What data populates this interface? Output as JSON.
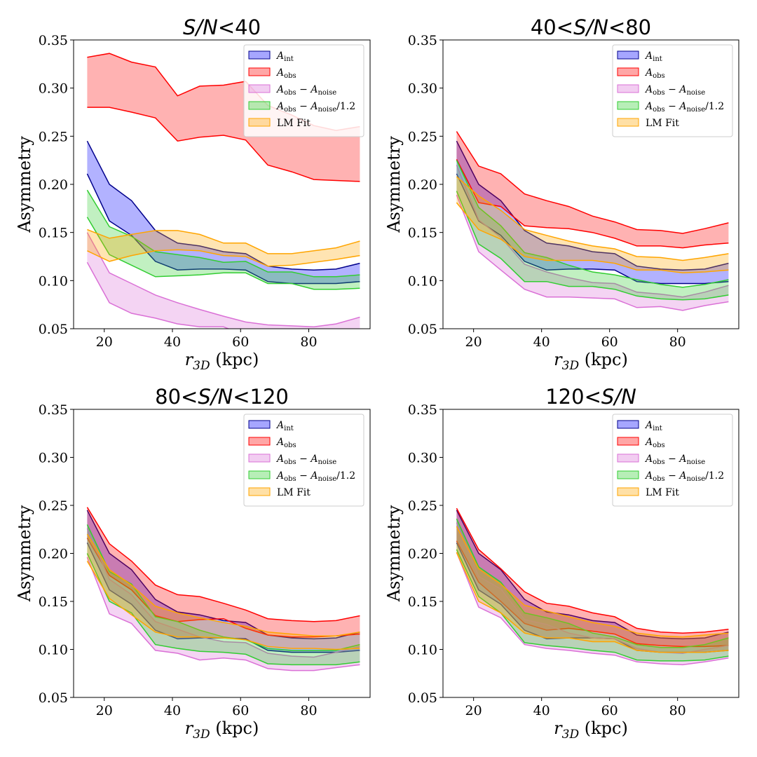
{
  "figure": {
    "ylabel": "Asymmetry",
    "xlabel_main": "r",
    "xlabel_sub": "3D",
    "xlabel_unit": " (kpc)"
  },
  "legend": [
    {
      "label": "A_int",
      "color": "#0000ff",
      "edge": "#00008b"
    },
    {
      "label": "A_obs",
      "color": "#ff0000",
      "edge": "#ff0000"
    },
    {
      "label": "A_obs − A_noise",
      "color": "#da70d6",
      "edge": "#da70d6"
    },
    {
      "label": "A_obs − A_noise/1.2",
      "color": "#32cd32",
      "edge": "#32cd32"
    },
    {
      "label": "LM Fit",
      "color": "#ffa500",
      "edge": "#ffa500"
    }
  ],
  "chart_data": [
    {
      "type": "area",
      "title": "S/N<40",
      "title_parts": [
        "S/N",
        "<40"
      ],
      "xlabel": "r3D (kpc)",
      "ylabel": "Asymmetry",
      "xlim": [
        11,
        98
      ],
      "ylim": [
        0.05,
        0.35
      ],
      "xticks": [
        20,
        40,
        60,
        80
      ],
      "yticks": [
        0.05,
        0.1,
        0.15,
        0.2,
        0.25,
        0.3,
        0.35
      ],
      "x": [
        15,
        21.5,
        28,
        35,
        41.5,
        48,
        55,
        61.5,
        68,
        75,
        81.5,
        88,
        95
      ],
      "series": [
        {
          "name": "A_int",
          "lower": [
            0.211,
            0.162,
            0.147,
            0.12,
            0.111,
            0.112,
            0.112,
            0.111,
            0.099,
            0.097,
            0.097,
            0.097,
            0.099
          ],
          "upper": [
            0.245,
            0.2,
            0.183,
            0.152,
            0.139,
            0.136,
            0.13,
            0.128,
            0.115,
            0.112,
            0.111,
            0.112,
            0.118
          ]
        },
        {
          "name": "A_obs",
          "lower": [
            0.28,
            0.28,
            0.275,
            0.269,
            0.245,
            0.249,
            0.251,
            0.246,
            0.22,
            0.213,
            0.205,
            0.204,
            0.203
          ],
          "upper": [
            0.332,
            0.336,
            0.327,
            0.322,
            0.292,
            0.302,
            0.303,
            0.307,
            0.282,
            0.272,
            0.261,
            0.256,
            0.26
          ]
        },
        {
          "name": "A_obs − A_noise",
          "lower": [
            0.119,
            0.077,
            0.066,
            0.061,
            0.055,
            0.052,
            0.052,
            0.043,
            0.043,
            0.042,
            0.042,
            0.043,
            0.045
          ],
          "upper": [
            0.15,
            0.108,
            0.097,
            0.085,
            0.077,
            0.07,
            0.063,
            0.057,
            0.054,
            0.053,
            0.052,
            0.055,
            0.062
          ]
        },
        {
          "name": "A_obs − A_noise/1.2",
          "lower": [
            0.166,
            0.127,
            0.116,
            0.104,
            0.105,
            0.106,
            0.108,
            0.108,
            0.097,
            0.097,
            0.091,
            0.091,
            0.092
          ],
          "upper": [
            0.194,
            0.156,
            0.146,
            0.13,
            0.127,
            0.124,
            0.119,
            0.12,
            0.109,
            0.109,
            0.104,
            0.104,
            0.106
          ]
        },
        {
          "name": "LM Fit",
          "lower": [
            0.131,
            0.12,
            0.126,
            0.131,
            0.132,
            0.131,
            0.126,
            0.125,
            0.115,
            0.116,
            0.119,
            0.122,
            0.126
          ],
          "upper": [
            0.153,
            0.144,
            0.148,
            0.152,
            0.152,
            0.148,
            0.139,
            0.139,
            0.128,
            0.128,
            0.131,
            0.134,
            0.141
          ]
        }
      ]
    },
    {
      "type": "area",
      "title": "40<S/N<80",
      "title_parts": [
        "40<",
        "S/N",
        "<80"
      ],
      "xlabel": "r3D (kpc)",
      "ylabel": "Asymmetry",
      "xlim": [
        11,
        98
      ],
      "ylim": [
        0.05,
        0.35
      ],
      "xticks": [
        20,
        40,
        60,
        80
      ],
      "yticks": [
        0.05,
        0.1,
        0.15,
        0.2,
        0.25,
        0.3,
        0.35
      ],
      "x": [
        15,
        21.5,
        28,
        35,
        41.5,
        48,
        55,
        61.5,
        68,
        75,
        81.5,
        88,
        95
      ],
      "series": [
        {
          "name": "A_int",
          "lower": [
            0.211,
            0.162,
            0.147,
            0.12,
            0.111,
            0.112,
            0.112,
            0.111,
            0.099,
            0.097,
            0.097,
            0.097,
            0.099
          ],
          "upper": [
            0.245,
            0.2,
            0.183,
            0.152,
            0.139,
            0.136,
            0.13,
            0.128,
            0.115,
            0.112,
            0.111,
            0.112,
            0.118
          ]
        },
        {
          "name": "A_obs",
          "lower": [
            0.226,
            0.181,
            0.177,
            0.157,
            0.155,
            0.154,
            0.15,
            0.144,
            0.136,
            0.136,
            0.134,
            0.137,
            0.139
          ],
          "upper": [
            0.255,
            0.219,
            0.211,
            0.19,
            0.183,
            0.177,
            0.167,
            0.161,
            0.153,
            0.152,
            0.149,
            0.154,
            0.16
          ]
        },
        {
          "name": "A_obs − A_noise",
          "lower": [
            0.189,
            0.13,
            0.111,
            0.091,
            0.083,
            0.083,
            0.082,
            0.081,
            0.072,
            0.073,
            0.069,
            0.074,
            0.078
          ],
          "upper": [
            0.22,
            0.163,
            0.145,
            0.117,
            0.109,
            0.103,
            0.098,
            0.097,
            0.088,
            0.086,
            0.083,
            0.088,
            0.095
          ]
        },
        {
          "name": "A_obs − A_noise/1.2",
          "lower": [
            0.193,
            0.138,
            0.123,
            0.099,
            0.099,
            0.094,
            0.094,
            0.091,
            0.084,
            0.081,
            0.08,
            0.081,
            0.085
          ],
          "upper": [
            0.225,
            0.176,
            0.157,
            0.129,
            0.124,
            0.116,
            0.109,
            0.106,
            0.101,
            0.096,
            0.093,
            0.096,
            0.101
          ]
        },
        {
          "name": "LM Fit",
          "lower": [
            0.181,
            0.153,
            0.143,
            0.125,
            0.121,
            0.121,
            0.121,
            0.118,
            0.111,
            0.111,
            0.108,
            0.109,
            0.111
          ],
          "upper": [
            0.208,
            0.188,
            0.173,
            0.153,
            0.147,
            0.141,
            0.136,
            0.133,
            0.125,
            0.124,
            0.121,
            0.124,
            0.128
          ]
        }
      ]
    },
    {
      "type": "area",
      "title": "80<S/N<120",
      "title_parts": [
        "80<",
        "S/N",
        "<120"
      ],
      "xlabel": "r3D (kpc)",
      "ylabel": "Asymmetry",
      "xlim": [
        11,
        98
      ],
      "ylim": [
        0.05,
        0.35
      ],
      "xticks": [
        20,
        40,
        60,
        80
      ],
      "yticks": [
        0.05,
        0.1,
        0.15,
        0.2,
        0.25,
        0.3,
        0.35
      ],
      "x": [
        15,
        21.5,
        28,
        35,
        41.5,
        48,
        55,
        61.5,
        68,
        75,
        81.5,
        88,
        95
      ],
      "series": [
        {
          "name": "A_int",
          "lower": [
            0.211,
            0.162,
            0.147,
            0.12,
            0.111,
            0.112,
            0.112,
            0.111,
            0.099,
            0.097,
            0.097,
            0.097,
            0.099
          ],
          "upper": [
            0.245,
            0.2,
            0.183,
            0.152,
            0.139,
            0.136,
            0.13,
            0.128,
            0.115,
            0.112,
            0.111,
            0.112,
            0.118
          ]
        },
        {
          "name": "A_obs",
          "lower": [
            0.216,
            0.177,
            0.162,
            0.135,
            0.129,
            0.131,
            0.132,
            0.122,
            0.115,
            0.113,
            0.113,
            0.114,
            0.116
          ],
          "upper": [
            0.248,
            0.21,
            0.192,
            0.167,
            0.157,
            0.155,
            0.148,
            0.141,
            0.132,
            0.13,
            0.129,
            0.13,
            0.135
          ]
        },
        {
          "name": "A_obs − A_noise",
          "lower": [
            0.196,
            0.137,
            0.127,
            0.099,
            0.096,
            0.089,
            0.091,
            0.089,
            0.08,
            0.078,
            0.078,
            0.081,
            0.084
          ],
          "upper": [
            0.226,
            0.173,
            0.157,
            0.129,
            0.121,
            0.113,
            0.108,
            0.107,
            0.096,
            0.093,
            0.092,
            0.097,
            0.103
          ]
        },
        {
          "name": "A_obs − A_noise/1.2",
          "lower": [
            0.2,
            0.15,
            0.138,
            0.105,
            0.101,
            0.098,
            0.097,
            0.095,
            0.085,
            0.084,
            0.084,
            0.084,
            0.087
          ],
          "upper": [
            0.23,
            0.181,
            0.168,
            0.134,
            0.129,
            0.12,
            0.113,
            0.11,
            0.101,
            0.099,
            0.099,
            0.099,
            0.105
          ]
        },
        {
          "name": "LM Fit",
          "lower": [
            0.192,
            0.153,
            0.136,
            0.118,
            0.113,
            0.113,
            0.112,
            0.11,
            0.103,
            0.101,
            0.101,
            0.1,
            0.101
          ],
          "upper": [
            0.22,
            0.183,
            0.167,
            0.145,
            0.138,
            0.133,
            0.128,
            0.124,
            0.118,
            0.116,
            0.114,
            0.114,
            0.118
          ]
        }
      ]
    },
    {
      "type": "area",
      "title": "120<S/N",
      "title_parts": [
        "120<",
        "S/N"
      ],
      "xlabel": "r3D (kpc)",
      "ylabel": "Asymmetry",
      "xlim": [
        11,
        98
      ],
      "ylim": [
        0.05,
        0.35
      ],
      "xticks": [
        20,
        40,
        60,
        80
      ],
      "yticks": [
        0.05,
        0.1,
        0.15,
        0.2,
        0.25,
        0.3,
        0.35
      ],
      "x": [
        15,
        21.5,
        28,
        35,
        41.5,
        48,
        55,
        61.5,
        68,
        75,
        81.5,
        88,
        95
      ],
      "series": [
        {
          "name": "A_int",
          "lower": [
            0.211,
            0.162,
            0.147,
            0.12,
            0.111,
            0.112,
            0.112,
            0.111,
            0.099,
            0.097,
            0.097,
            0.097,
            0.099
          ],
          "upper": [
            0.245,
            0.2,
            0.183,
            0.152,
            0.139,
            0.136,
            0.13,
            0.128,
            0.115,
            0.112,
            0.111,
            0.112,
            0.118
          ]
        },
        {
          "name": "A_obs",
          "lower": [
            0.213,
            0.17,
            0.15,
            0.127,
            0.12,
            0.122,
            0.119,
            0.116,
            0.106,
            0.104,
            0.103,
            0.103,
            0.104
          ],
          "upper": [
            0.247,
            0.204,
            0.184,
            0.16,
            0.148,
            0.145,
            0.138,
            0.134,
            0.122,
            0.118,
            0.117,
            0.118,
            0.121
          ]
        },
        {
          "name": "A_obs − A_noise",
          "lower": [
            0.201,
            0.144,
            0.133,
            0.105,
            0.101,
            0.099,
            0.096,
            0.094,
            0.087,
            0.085,
            0.084,
            0.087,
            0.091
          ],
          "upper": [
            0.232,
            0.176,
            0.163,
            0.131,
            0.126,
            0.117,
            0.112,
            0.111,
            0.101,
            0.097,
            0.096,
            0.1,
            0.104
          ]
        },
        {
          "name": "A_obs − A_noise/1.2",
          "lower": [
            0.204,
            0.155,
            0.138,
            0.107,
            0.104,
            0.102,
            0.099,
            0.097,
            0.089,
            0.088,
            0.088,
            0.089,
            0.093
          ],
          "upper": [
            0.236,
            0.186,
            0.17,
            0.138,
            0.133,
            0.127,
            0.117,
            0.113,
            0.105,
            0.102,
            0.102,
            0.105,
            0.112
          ]
        },
        {
          "name": "LM Fit",
          "lower": [
            0.201,
            0.15,
            0.138,
            0.117,
            0.112,
            0.112,
            0.108,
            0.108,
            0.099,
            0.097,
            0.097,
            0.097,
            0.099
          ],
          "upper": [
            0.228,
            0.184,
            0.168,
            0.146,
            0.14,
            0.134,
            0.128,
            0.124,
            0.117,
            0.114,
            0.113,
            0.115,
            0.117
          ]
        }
      ]
    }
  ]
}
